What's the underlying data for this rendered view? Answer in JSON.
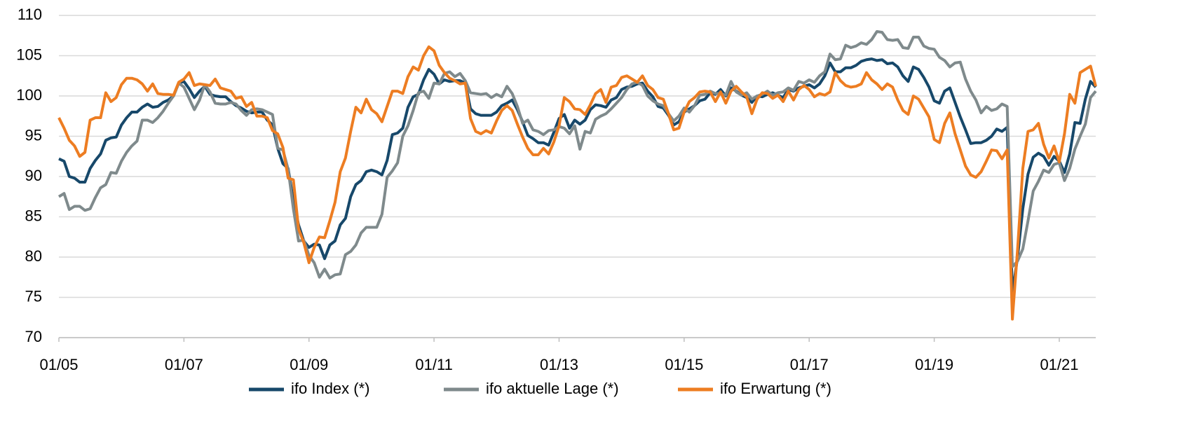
{
  "chart_data": {
    "type": "line",
    "categories": [
      "01/05",
      null,
      null,
      null,
      null,
      null,
      null,
      null,
      null,
      null,
      null,
      null,
      null,
      null,
      null,
      null,
      null,
      null,
      null,
      null,
      null,
      null,
      null,
      null,
      "01/07",
      null,
      null,
      null,
      null,
      null,
      null,
      null,
      null,
      null,
      null,
      null,
      null,
      null,
      null,
      null,
      null,
      null,
      null,
      null,
      null,
      null,
      null,
      null,
      "01/09",
      null,
      null,
      null,
      null,
      null,
      null,
      null,
      null,
      null,
      null,
      null,
      null,
      null,
      null,
      null,
      null,
      null,
      null,
      null,
      null,
      null,
      null,
      null,
      "01/11",
      null,
      null,
      null,
      null,
      null,
      null,
      null,
      null,
      null,
      null,
      null,
      null,
      null,
      null,
      null,
      null,
      null,
      null,
      null,
      null,
      null,
      null,
      null,
      "01/13",
      null,
      null,
      null,
      null,
      null,
      null,
      null,
      null,
      null,
      null,
      null,
      null,
      null,
      null,
      null,
      null,
      null,
      null,
      null,
      null,
      null,
      null,
      null,
      "01/15",
      null,
      null,
      null,
      null,
      null,
      null,
      null,
      null,
      null,
      null,
      null,
      null,
      null,
      null,
      null,
      null,
      null,
      null,
      null,
      null,
      null,
      null,
      null,
      "01/17",
      null,
      null,
      null,
      null,
      null,
      null,
      null,
      null,
      null,
      null,
      null,
      null,
      null,
      null,
      null,
      null,
      null,
      null,
      null,
      null,
      null,
      null,
      null,
      "01/19",
      null,
      null,
      null,
      null,
      null,
      null,
      null,
      null,
      null,
      null,
      null,
      null,
      null,
      null,
      null,
      null,
      null,
      null,
      null,
      null,
      null,
      null,
      null,
      "01/21",
      null,
      null,
      null,
      null,
      null,
      null,
      null
    ],
    "series": [
      {
        "name": "ifo Index (*)",
        "color": "#17486a",
        "values": [
          92.2,
          91.9,
          90,
          89.8,
          89.3,
          89.3,
          91,
          92,
          92.8,
          94.5,
          94.8,
          94.9,
          96.4,
          97.3,
          98,
          98,
          98.6,
          99,
          98.6,
          98.7,
          99.2,
          99.5,
          100,
          101.6,
          101.8,
          100.9,
          99.8,
          100.6,
          101.2,
          100.2,
          100,
          99.9,
          99.9,
          99.3,
          98.8,
          98.5,
          98.1,
          97.9,
          98,
          98,
          97,
          96.4,
          93.5,
          91.6,
          91,
          87,
          84,
          82,
          81.2,
          81.6,
          81.5,
          79.8,
          81.5,
          82,
          84,
          84.8,
          87.5,
          89,
          89.5,
          90.6,
          90.8,
          90.6,
          90.2,
          92,
          95.2,
          95.4,
          96,
          98.6,
          99.9,
          100.2,
          102,
          103.3,
          102.7,
          101.5,
          102,
          101.8,
          101.9,
          101.9,
          101.6,
          98.4,
          97.8,
          97.6,
          97.6,
          97.6,
          98,
          98.8,
          99.1,
          99.5,
          98.3,
          96.8,
          95.1,
          94.7,
          94.2,
          94.2,
          93.9,
          95.5,
          97.2,
          97.7,
          96,
          97,
          96.5,
          97,
          98.3,
          98.9,
          98.8,
          98.6,
          99.5,
          99.8,
          100.8,
          101.1,
          101.2,
          101.5,
          101.6,
          100.6,
          99.9,
          98.7,
          98.5,
          97.6,
          96.4,
          96.8,
          98,
          98.4,
          98.8,
          99.4,
          99.6,
          100.4,
          100.2,
          100.8,
          100,
          101,
          100.6,
          100.1,
          99.8,
          99.2,
          100,
          99.9,
          100.2,
          100.4,
          100.1,
          99.8,
          100.8,
          100.6,
          101,
          101.2,
          101.4,
          101,
          101.5,
          102.5,
          104.1,
          103,
          103,
          103.5,
          103.5,
          103.8,
          104.3,
          104.5,
          104.6,
          104.4,
          104.5,
          104,
          104.1,
          103.6,
          102.5,
          101.8,
          103.6,
          103.3,
          102.3,
          101.1,
          99.4,
          99.1,
          100.6,
          101,
          99.2,
          97.4,
          95.8,
          94.1,
          94.2,
          94.2,
          94.5,
          95,
          95.9,
          95.6,
          96.1,
          75.5,
          80,
          86,
          90.3,
          92.4,
          92.9,
          92.5,
          91.4,
          92.5,
          91.9,
          90.5,
          92.8,
          96.7,
          96.6,
          99.6,
          101.8,
          101.1
        ]
      },
      {
        "name": "ifo aktuelle Lage (*)",
        "color": "#7f8a8c",
        "values": [
          87.5,
          87.9,
          85.9,
          86.3,
          86.3,
          85.8,
          86,
          87.4,
          88.6,
          89,
          90.5,
          90.4,
          91.9,
          93,
          93.8,
          94.4,
          97,
          97,
          96.7,
          97.3,
          98.1,
          99.1,
          100,
          101.6,
          101.1,
          99.7,
          98.3,
          99.5,
          101.4,
          100.5,
          99.1,
          99,
          99,
          99.2,
          99,
          98.2,
          97.6,
          98.3,
          98.4,
          98.3,
          98,
          97.7,
          93.5,
          93.3,
          90.9,
          86,
          82,
          82.1,
          80.2,
          79.3,
          77.5,
          78.5,
          77.4,
          77.8,
          77.9,
          80.3,
          80.7,
          81.5,
          83,
          83.7,
          83.7,
          83.7,
          85.3,
          89.9,
          90.7,
          91.7,
          95,
          96.3,
          98.2,
          100.4,
          100.6,
          99.7,
          101.6,
          101.5,
          102.8,
          103,
          102.4,
          102.8,
          101.9,
          100.4,
          100.3,
          100.2,
          100.3,
          99.8,
          100.2,
          99.9,
          101.2,
          100.3,
          98.7,
          96.6,
          97,
          95.8,
          95.6,
          95.2,
          95.7,
          95.8,
          96.2,
          96,
          95.3,
          96.3,
          93.4,
          95.6,
          95.4,
          97.1,
          97.5,
          97.8,
          98.4,
          99.1,
          99.8,
          100.8,
          101.5,
          101.7,
          101.3,
          100,
          99.4,
          99,
          98.8,
          97.8,
          96.9,
          97.5,
          98.5,
          98,
          98.8,
          100.1,
          100.2,
          100.6,
          100.3,
          100.3,
          100.1,
          101.8,
          100.5,
          100.1,
          100.4,
          99.6,
          100,
          100.2,
          100.6,
          100.1,
          100.4,
          100.5,
          101,
          100.7,
          101.8,
          101.6,
          102,
          101.7,
          102.5,
          103,
          105.2,
          104.5,
          104.6,
          106.3,
          106,
          106.2,
          106.6,
          106.4,
          107,
          108,
          107.9,
          107,
          106.9,
          107,
          106,
          105.9,
          107.3,
          107.3,
          106.2,
          105.9,
          105.8,
          104.8,
          104.4,
          103.6,
          104.1,
          104.2,
          102.1,
          100.6,
          99.5,
          97.9,
          98.7,
          98.2,
          98.4,
          99,
          98.7,
          78.8,
          79.5,
          81,
          84.5,
          88.2,
          89.4,
          90.8,
          90.5,
          91.5,
          91.7,
          89.5,
          91,
          93.4,
          95,
          96.5,
          99.8,
          100.6
        ]
      },
      {
        "name": "ifo Erwartung (*)",
        "color": "#ed7d22",
        "values": [
          97.3,
          96,
          94.5,
          93.8,
          92.5,
          93,
          97,
          97.3,
          97.3,
          100.4,
          99.3,
          99.8,
          101.4,
          102.2,
          102.2,
          102,
          101.5,
          100.6,
          101.5,
          100.3,
          100.2,
          100.2,
          100.1,
          101.7,
          102.1,
          102.9,
          101.3,
          101.5,
          101.4,
          101.3,
          102.1,
          101,
          100.8,
          100.6,
          99.7,
          99.9,
          98.7,
          99.2,
          97.5,
          97.5,
          97.3,
          95.7,
          95.3,
          93.6,
          89.8,
          89.6,
          83.5,
          81.8,
          79.3,
          81.2,
          82.5,
          82.4,
          84.5,
          86.8,
          90.6,
          92.3,
          95.6,
          98.6,
          97.9,
          99.6,
          98.3,
          97.8,
          96.8,
          98.7,
          100.6,
          100.6,
          100.3,
          102.4,
          103.6,
          103.2,
          105,
          106.1,
          105.6,
          103.8,
          102.9,
          102.2,
          101.9,
          101.5,
          101.6,
          97.2,
          95.6,
          95.3,
          95.7,
          95.4,
          96.9,
          98.2,
          98.8,
          98.2,
          96.5,
          94.9,
          93.5,
          92.7,
          92.7,
          93.5,
          92.8,
          94.3,
          96.3,
          99.8,
          99.3,
          98.4,
          98.3,
          97.7,
          98.9,
          100.3,
          100.8,
          99.2,
          101.1,
          101.3,
          102.3,
          102.5,
          102.1,
          101.7,
          102.5,
          101.3,
          100.8,
          99.8,
          99.6,
          97.8,
          95.8,
          96,
          98,
          99.3,
          99.8,
          100.5,
          100.6,
          100.5,
          99.3,
          100.5,
          99.1,
          100.6,
          101.2,
          100.5,
          99.9,
          97.8,
          99.6,
          100.4,
          100.3,
          99.7,
          100.1,
          99.3,
          100.6,
          99.5,
          100.8,
          101.3,
          100.8,
          99.9,
          100.3,
          100.1,
          100.5,
          102.9,
          101.9,
          101.3,
          101.1,
          101.2,
          101.5,
          102.9,
          102,
          101.5,
          100.8,
          101.5,
          101.1,
          99.5,
          98.2,
          97.7,
          100,
          99.6,
          98.5,
          97.4,
          94.6,
          94.2,
          96.6,
          97.9,
          95.3,
          93.3,
          91.3,
          90.2,
          89.9,
          90.6,
          91.9,
          93.3,
          93.2,
          92.2,
          93.3,
          72.3,
          81,
          91,
          95.6,
          95.8,
          96.6,
          94,
          92.3,
          93.8,
          91.8,
          95.3,
          100.2,
          99.1,
          102.9,
          103.3,
          103.7,
          101.2
        ]
      }
    ],
    "ylim": [
      70,
      110
    ],
    "yticks": [
      70,
      75,
      80,
      85,
      90,
      95,
      100,
      105,
      110
    ],
    "grid": true
  }
}
